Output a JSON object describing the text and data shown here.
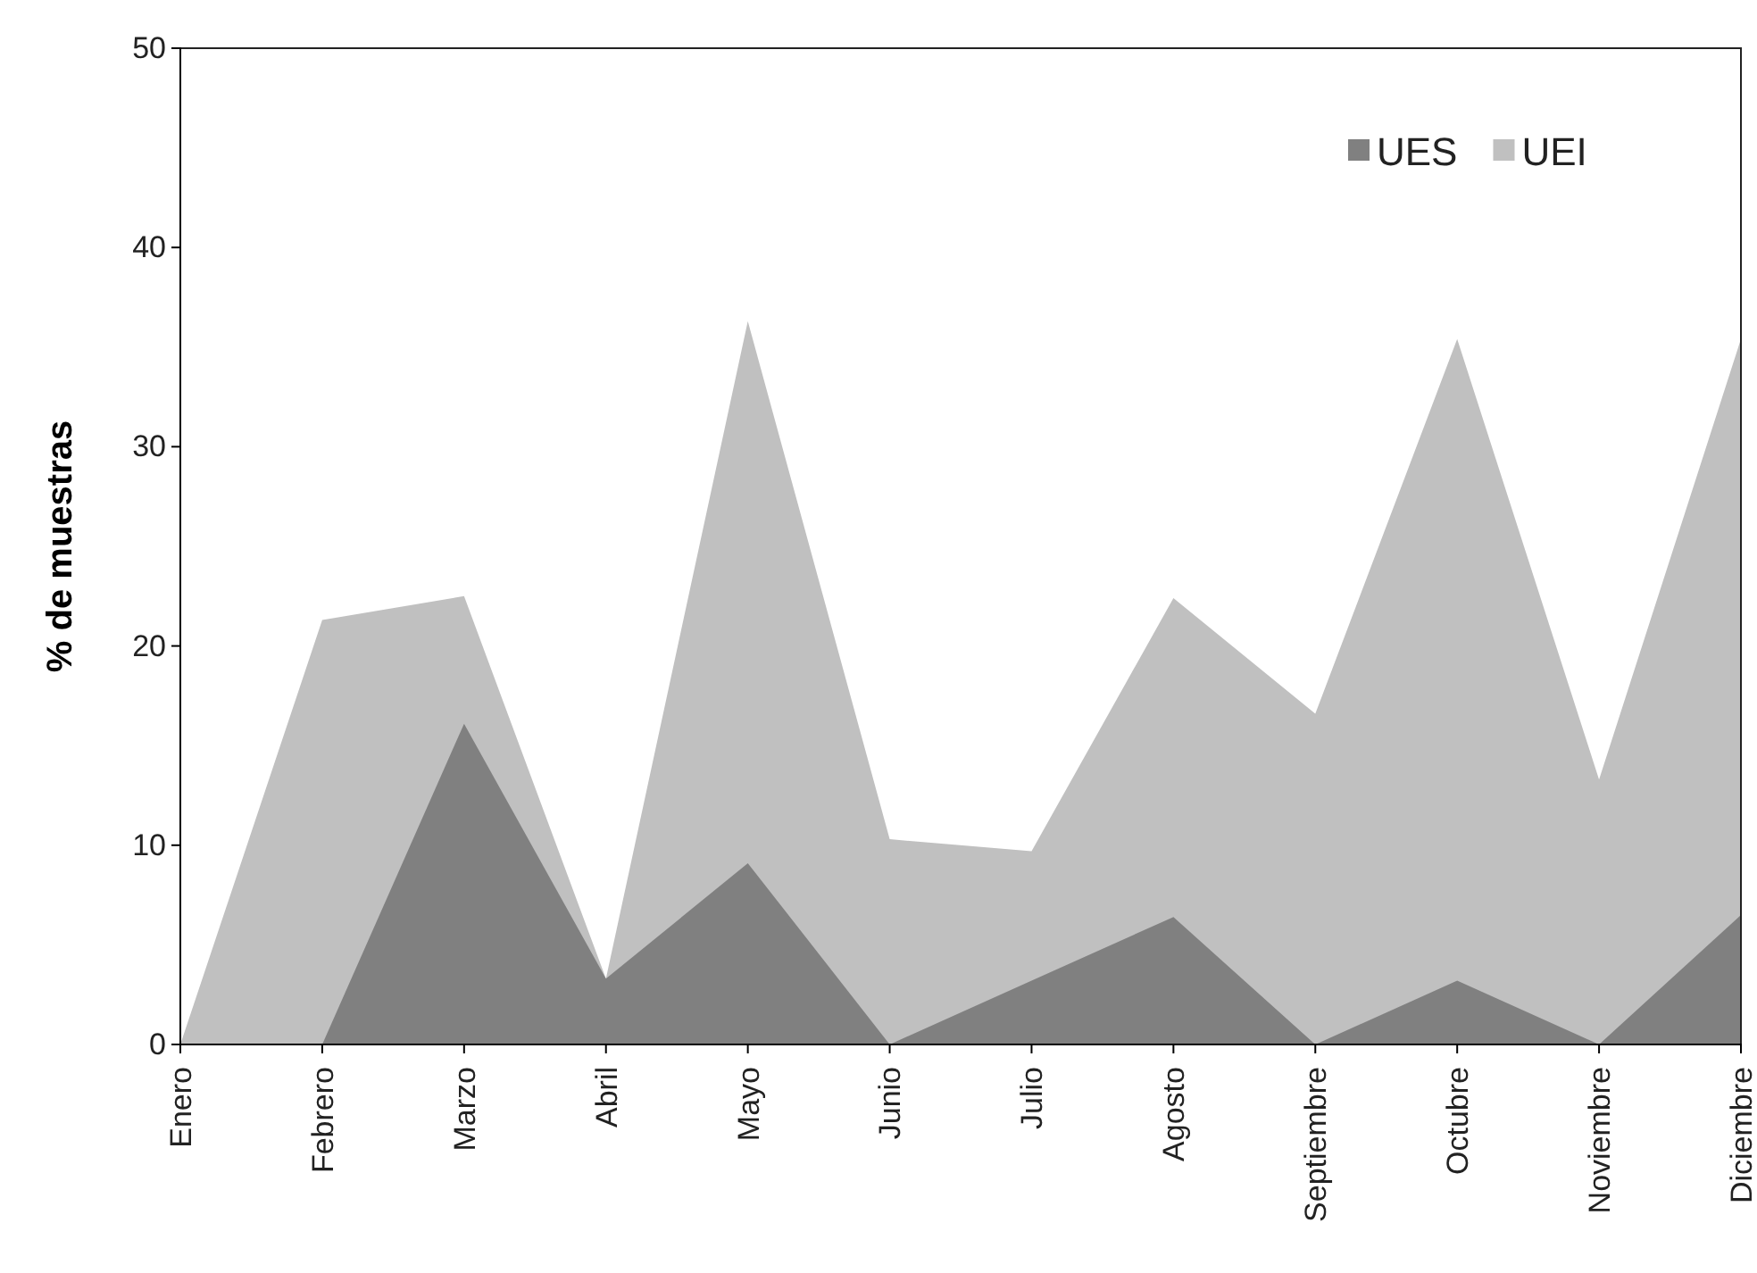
{
  "chart_data": {
    "type": "area",
    "ylabel": "% de muestras",
    "categories": [
      "Enero",
      "Febrero",
      "Marzo",
      "Abril",
      "Mayo",
      "Junio",
      "Julio",
      "Agosto",
      "Septiembre",
      "Octubre",
      "Noviembre",
      "Diciembre"
    ],
    "series": [
      {
        "name": "UES",
        "color": "#808080",
        "values": [
          0,
          0,
          16.1,
          3.3,
          9.1,
          0,
          3.2,
          6.4,
          0,
          3.2,
          0,
          6.5
        ]
      },
      {
        "name": "UEI",
        "color": "#c0c0c0",
        "values": [
          0,
          21.3,
          22.5,
          3.3,
          36.3,
          10.3,
          9.7,
          22.4,
          16.6,
          35.4,
          13.3,
          35.4
        ]
      }
    ],
    "ylim": [
      0,
      50
    ],
    "yticks": [
      0,
      10,
      20,
      30,
      40,
      50
    ],
    "grid": false,
    "legend": "top right"
  }
}
